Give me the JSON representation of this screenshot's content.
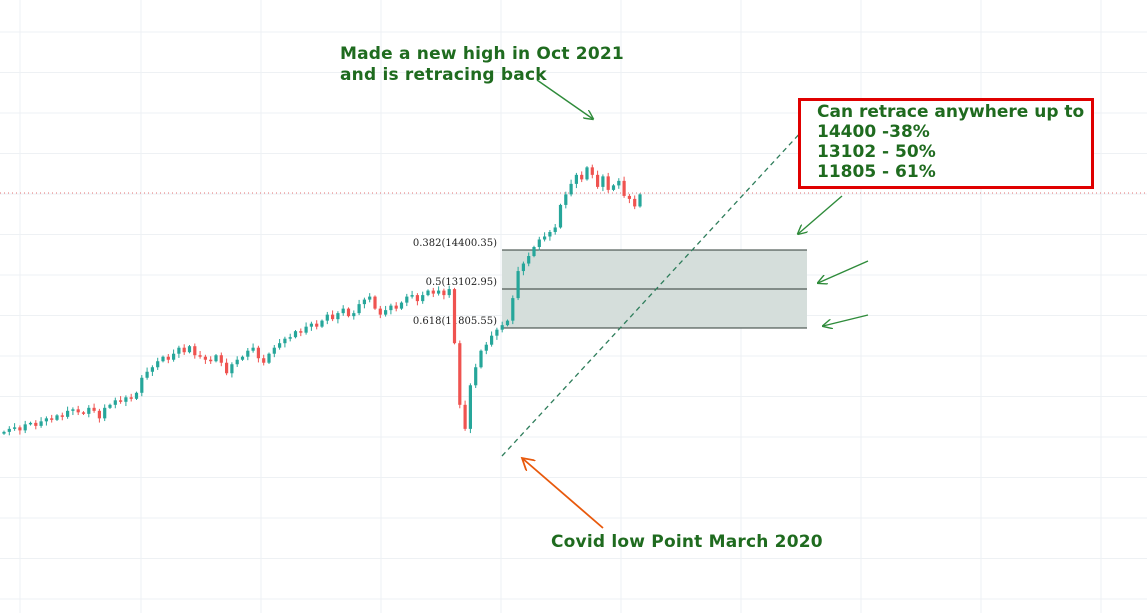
{
  "colors": {
    "up": "#26a69a",
    "down": "#ef5350",
    "fib_zone": "#d5dedb",
    "fib_line": "#2e3b36",
    "annotation_text": "#1f6b1f",
    "arrow_green": "#2e8b3a",
    "arrow_orange": "#e8590c",
    "box_border": "#e00000",
    "price_line": "#e57373"
  },
  "annotations": {
    "high_line1": "Made a new high in Oct 2021",
    "high_line2": "and is retracing back",
    "low_label": "Covid low Point March 2020",
    "retrace_title": "Can retrace anywhere up to",
    "retrace_line1": "14400 -38%",
    "retrace_line2": "13102 - 50%",
    "retrace_line3": "11805 - 61%"
  },
  "chart_data": {
    "type": "candlestick",
    "title": "",
    "grid": true,
    "ylim": [
      7400,
      17800
    ],
    "fib_levels": [
      {
        "ratio": 0.382,
        "price": 14400.35,
        "label": "0.382(14400.35)"
      },
      {
        "ratio": 0.5,
        "price": 13102.95,
        "label": "0.5(13102.95)"
      },
      {
        "ratio": 0.618,
        "price": 11805.55,
        "label": "0.618(11805.55)"
      }
    ],
    "current_price": 16250,
    "closes": [
      8350,
      8450,
      8500,
      8400,
      8600,
      8650,
      8550,
      8700,
      8800,
      8750,
      8900,
      8850,
      9050,
      9100,
      9000,
      8950,
      9150,
      9050,
      8800,
      9150,
      9250,
      9400,
      9350,
      9500,
      9450,
      9650,
      10150,
      10350,
      10500,
      10700,
      10850,
      10750,
      10950,
      11150,
      11000,
      11200,
      10900,
      10850,
      10750,
      10700,
      10900,
      10650,
      10300,
      10600,
      10750,
      10850,
      11050,
      11150,
      10800,
      10650,
      10950,
      11150,
      11300,
      11450,
      11500,
      11700,
      11650,
      11850,
      11950,
      11850,
      12050,
      12250,
      12100,
      12300,
      12450,
      12200,
      12300,
      12600,
      12750,
      12850,
      12450,
      12250,
      12400,
      12550,
      12450,
      12650,
      12850,
      12900,
      12700,
      12900,
      13050,
      12950,
      13050,
      12900,
      13100,
      11300,
      9250,
      8450,
      9900,
      10500,
      11050,
      11250,
      11550,
      11750,
      11900,
      12050,
      12800,
      13700,
      13950,
      14200,
      14500,
      14750,
      14850,
      15000,
      15150,
      15900,
      16250,
      16600,
      16900,
      16750,
      17150,
      16900,
      16500,
      16850,
      16400,
      16550,
      16700,
      16200,
      16100,
      15850,
      16250
    ]
  }
}
